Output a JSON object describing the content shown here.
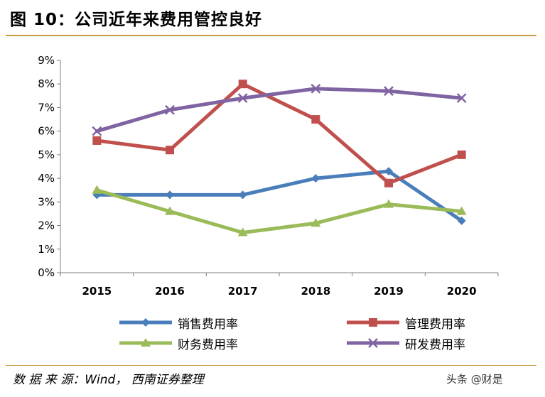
{
  "header": {
    "title": "图 10：公司近年来费用管控良好"
  },
  "footer": {
    "source": "数 据 来 源：Wind， 西南证券整理",
    "watermark": "头条 @财是"
  },
  "colors": {
    "sales": "#4a7ebb",
    "admin": "#c0504d",
    "finance": "#9bbb59",
    "rnd": "#8064a2",
    "rule": "#c89a3c"
  },
  "chart_data": {
    "type": "line",
    "title": "",
    "xlabel": "",
    "ylabel": "",
    "categories": [
      "2015",
      "2016",
      "2017",
      "2018",
      "2019",
      "2020"
    ],
    "ylim": [
      0,
      9
    ],
    "yticks": [
      "0%",
      "1%",
      "2%",
      "3%",
      "4%",
      "5%",
      "6%",
      "7%",
      "8%",
      "9%"
    ],
    "grid": false,
    "legend_position": "bottom",
    "series": [
      {
        "name": "销售费用率",
        "key": "sales",
        "marker": "diamond",
        "values": [
          3.3,
          3.3,
          3.3,
          4.0,
          4.3,
          2.2
        ]
      },
      {
        "name": "管理费用率",
        "key": "admin",
        "marker": "square",
        "values": [
          5.6,
          5.2,
          8.0,
          6.5,
          3.8,
          5.0
        ]
      },
      {
        "name": "财务费用率",
        "key": "finance",
        "marker": "triangle",
        "values": [
          3.5,
          2.6,
          1.7,
          2.1,
          2.9,
          2.6
        ]
      },
      {
        "name": "研发费用率",
        "key": "rnd",
        "marker": "x",
        "values": [
          6.0,
          6.9,
          7.4,
          7.8,
          7.7,
          7.4
        ]
      }
    ]
  }
}
